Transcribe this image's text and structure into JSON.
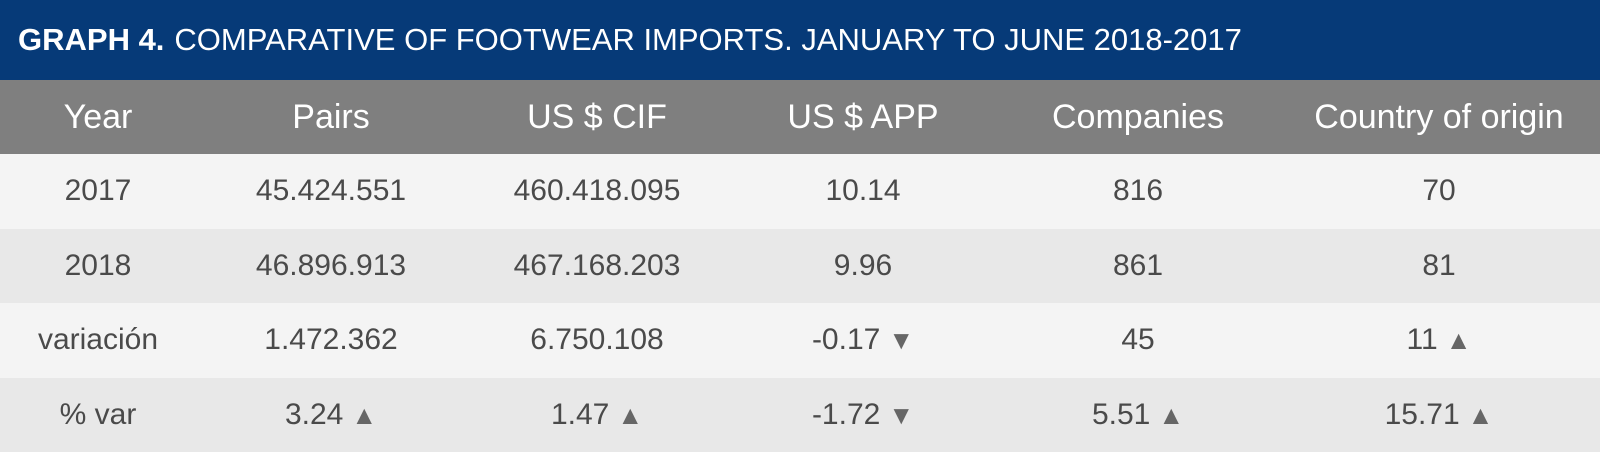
{
  "title": {
    "lead": "GRAPH 4.",
    "text": "COMPARATIVE OF FOOTWEAR IMPORTS. JANUARY TO JUNE 2018-2017"
  },
  "chart_data": {
    "type": "table",
    "title": "GRAPH 4. COMPARATIVE OF FOOTWEAR IMPORTS. JANUARY TO JUNE 2018-2017",
    "columns": [
      "Year",
      "Pairs",
      "US $ CIF",
      "US $ APP",
      "Companies",
      "Country of origin"
    ],
    "rows": [
      {
        "label": "2017",
        "cells": [
          {
            "value": "45.424.551",
            "arrow": ""
          },
          {
            "value": "460.418.095",
            "arrow": ""
          },
          {
            "value": "10.14",
            "arrow": ""
          },
          {
            "value": "816",
            "arrow": ""
          },
          {
            "value": "70",
            "arrow": ""
          }
        ]
      },
      {
        "label": "2018",
        "cells": [
          {
            "value": "46.896.913",
            "arrow": ""
          },
          {
            "value": "467.168.203",
            "arrow": ""
          },
          {
            "value": "9.96",
            "arrow": ""
          },
          {
            "value": "861",
            "arrow": ""
          },
          {
            "value": "81",
            "arrow": ""
          }
        ]
      },
      {
        "label": "variación",
        "cells": [
          {
            "value": "1.472.362",
            "arrow": ""
          },
          {
            "value": "6.750.108",
            "arrow": ""
          },
          {
            "value": "-0.17",
            "arrow": "▼"
          },
          {
            "value": "45",
            "arrow": ""
          },
          {
            "value": "11",
            "arrow": "▲"
          }
        ]
      },
      {
        "label": "% var",
        "cells": [
          {
            "value": "3.24",
            "arrow": "▲"
          },
          {
            "value": "1.47",
            "arrow": "▲"
          },
          {
            "value": "-1.72",
            "arrow": "▼"
          },
          {
            "value": "5.51",
            "arrow": "▲"
          },
          {
            "value": "15.71",
            "arrow": "▲"
          }
        ]
      }
    ]
  },
  "colors": {
    "title_background": "#063a78",
    "header_background": "#7f7f7f",
    "row_odd": "#f4f4f4",
    "row_even": "#e8e8e8",
    "text": "#4a4a4a",
    "arrow": "#666666"
  }
}
